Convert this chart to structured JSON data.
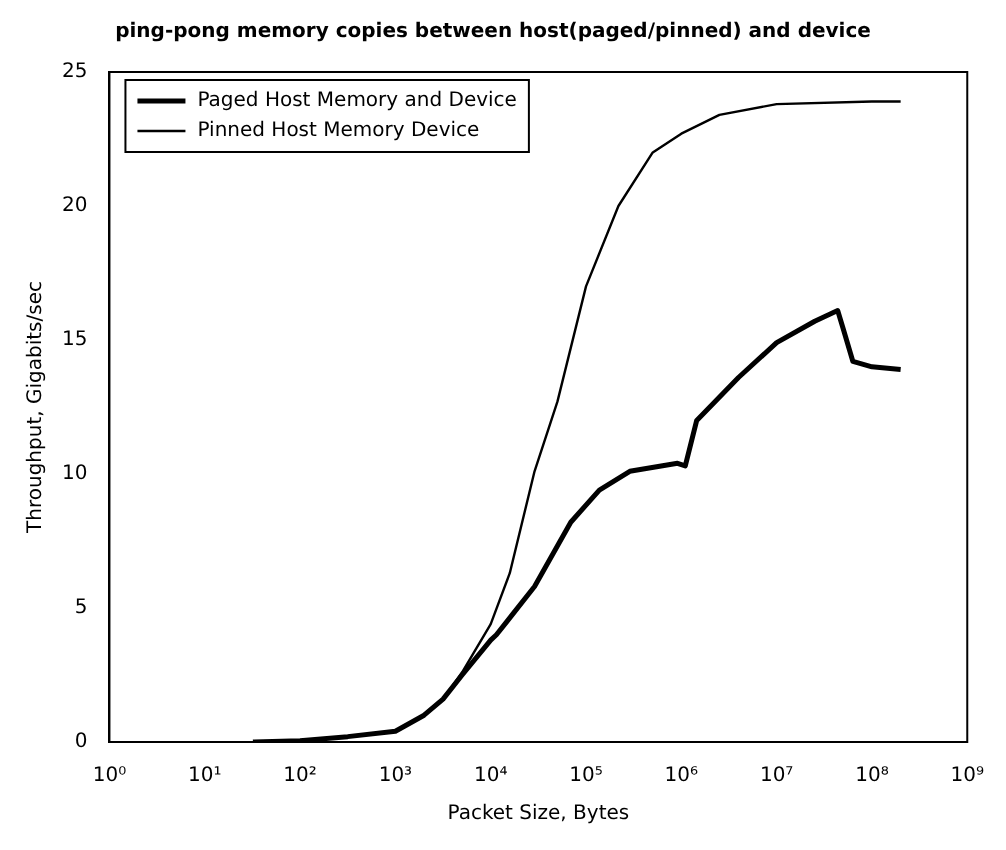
{
  "chart_data": {
    "type": "line",
    "title": "ping-pong memory copies between host(paged/pinned) and device",
    "xlabel": "Packet Size, Bytes",
    "ylabel": "Throughput, Gigabits/sec",
    "log": "x",
    "xlim": [
      1,
      1000000000
    ],
    "xticks": [
      {
        "value": 1,
        "label": "10⁰"
      },
      {
        "value": 10,
        "label": "10¹"
      },
      {
        "value": 100,
        "label": "10²"
      },
      {
        "value": 1000,
        "label": "10³"
      },
      {
        "value": 10000,
        "label": "10⁴"
      },
      {
        "value": 100000,
        "label": "10⁵"
      },
      {
        "value": 1000000,
        "label": "10⁶"
      },
      {
        "value": 10000000,
        "label": "10⁷"
      },
      {
        "value": 100000000,
        "label": "10⁸"
      },
      {
        "value": 1000000000,
        "label": "10⁹"
      }
    ],
    "ylim": [
      0,
      25
    ],
    "yticks": [
      0,
      5,
      10,
      15,
      20,
      25
    ],
    "grid": false,
    "legend": "top left",
    "marker": "none",
    "line_style": "solid",
    "series": [
      {
        "name": "Paged Host Memory and Device",
        "color": "#000000",
        "x": [
          32,
          100,
          316,
          1000,
          2000,
          3162,
          5012,
          10000,
          11482,
          28840,
          69183,
          138000,
          288000,
          912000,
          1100000,
          1450000,
          3980000,
          10000000,
          25100000,
          43700000,
          50100000,
          63100000,
          100000000,
          200000000
        ],
        "values": [
          0,
          0.05,
          0.2,
          0.4,
          1.0,
          1.6,
          2.5,
          3.8,
          4.0,
          5.8,
          8.2,
          9.4,
          10.1,
          10.4,
          10.3,
          12.0,
          13.6,
          14.9,
          15.7,
          16.1,
          15.4,
          14.2,
          14.0,
          13.9
        ]
      },
      {
        "name": "Pinned Host Memory Device",
        "color": "#000000",
        "x": [
          32,
          100,
          316,
          1000,
          2000,
          3162,
          5012,
          10000,
          15849,
          28840,
          50119,
          100000,
          218776,
          501187,
          1000000,
          2510000,
          10000000,
          100000000,
          200000000
        ],
        "values": [
          0,
          0.05,
          0.2,
          0.4,
          1.0,
          1.6,
          2.6,
          4.4,
          6.3,
          10.1,
          12.7,
          17.0,
          20.0,
          22.0,
          22.7,
          23.4,
          23.8,
          23.9,
          23.9
        ]
      }
    ]
  }
}
